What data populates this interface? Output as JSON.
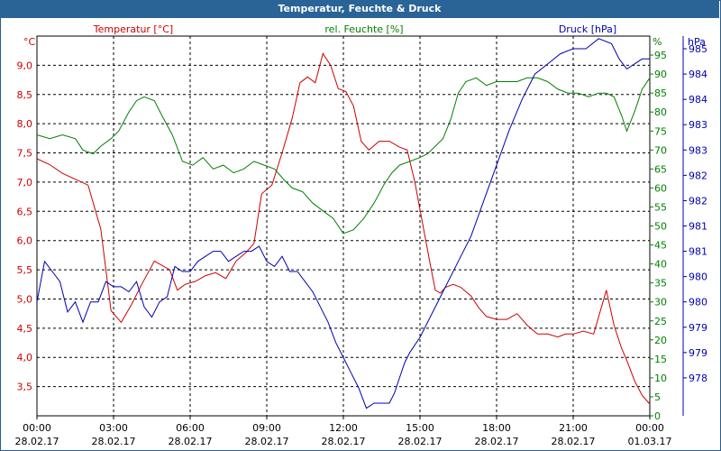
{
  "title": "Temperatur, Feuchte & Druck",
  "chart_data": {
    "type": "line",
    "title": "Temperatur, Feuchte & Druck",
    "colors": {
      "temperature": "#cc0000",
      "humidity": "#008000",
      "pressure": "#0000b0",
      "title_bg": "#2a6496"
    },
    "grid": true,
    "legend_placement": "top",
    "x_ticks": [
      {
        "time": "00:00",
        "date": "28.02.17"
      },
      {
        "time": "03:00",
        "date": "28.02.17"
      },
      {
        "time": "06:00",
        "date": "28.02.17"
      },
      {
        "time": "09:00",
        "date": "28.02.17"
      },
      {
        "time": "12:00",
        "date": "28.02.17"
      },
      {
        "time": "15:00",
        "date": "28.02.17"
      },
      {
        "time": "18:00",
        "date": "28.02.17"
      },
      {
        "time": "21:00",
        "date": "28.02.17"
      },
      {
        "time": "00:00",
        "date": "01.03.17"
      }
    ],
    "xlim": [
      "28.02.17 00:00",
      "01.03.17 00:00"
    ],
    "axes": {
      "temperature": {
        "label": "Temperatur [°C]",
        "unit": "°C",
        "ylim": [
          3.0,
          9.5
        ],
        "ticks": [
          "9,0",
          "8,5",
          "8,0",
          "7,5",
          "7,0",
          "6,5",
          "6,0",
          "5,5",
          "5,0",
          "4,5",
          "4,0",
          "3,5"
        ]
      },
      "humidity": {
        "label": "rel. Feuchte [%]",
        "unit": "%",
        "ylim": [
          0,
          100
        ],
        "ticks": [
          "95",
          "90",
          "85",
          "80",
          "75",
          "70",
          "65",
          "60",
          "55",
          "50",
          "45",
          "40",
          "35",
          "30",
          "25",
          "20",
          "15",
          "10",
          "5",
          "0"
        ]
      },
      "pressure": {
        "label": "Druck [hPa]",
        "unit": "hPa",
        "ylim": [
          977.75,
          985.25
        ],
        "ticks": [
          "985",
          "984",
          "984",
          "983",
          "983",
          "982",
          "982",
          "981",
          "981",
          "980",
          "980",
          "979",
          "979",
          "978"
        ]
      }
    },
    "series": [
      {
        "name": "Temperatur [°C]",
        "key": "temperature",
        "x": [
          0,
          0.5,
          1.0,
          1.5,
          2.0,
          2.5,
          2.9,
          3.3,
          3.7,
          4.1,
          4.6,
          5.2,
          5.5,
          5.8,
          6.2,
          6.6,
          7.0,
          7.4,
          7.8,
          8.2,
          8.5,
          8.8,
          9.2,
          9.6,
          10.0,
          10.3,
          10.6,
          10.9,
          11.2,
          11.5,
          11.8,
          12.1,
          12.4,
          12.7,
          13.0,
          13.4,
          13.8,
          14.2,
          14.5,
          14.8,
          15.1,
          15.4,
          15.6,
          15.8,
          16.0,
          16.3,
          16.6,
          17.0,
          17.3,
          17.6,
          18.0,
          18.4,
          18.8,
          19.2,
          19.6,
          20.0,
          20.4,
          20.7,
          21.0,
          21.4,
          21.8,
          22.3,
          22.6,
          22.9,
          23.1,
          23.4,
          23.7,
          24.0
        ],
        "values": [
          7.4,
          7.3,
          7.15,
          7.05,
          6.95,
          6.2,
          4.8,
          4.6,
          4.9,
          5.25,
          5.65,
          5.5,
          5.15,
          5.25,
          5.3,
          5.4,
          5.45,
          5.35,
          5.65,
          5.8,
          5.95,
          6.8,
          6.95,
          7.5,
          8.1,
          8.7,
          8.8,
          8.7,
          9.2,
          9.0,
          8.6,
          8.55,
          8.3,
          7.7,
          7.55,
          7.7,
          7.7,
          7.6,
          7.55,
          7.0,
          6.3,
          5.6,
          5.15,
          5.1,
          5.2,
          5.25,
          5.2,
          5.05,
          4.85,
          4.7,
          4.65,
          4.65,
          4.75,
          4.55,
          4.4,
          4.4,
          4.35,
          4.4,
          4.4,
          4.45,
          4.4,
          5.15,
          4.55,
          4.15,
          3.95,
          3.6,
          3.35,
          3.2
        ]
      },
      {
        "name": "rel. Feuchte [%]",
        "key": "humidity",
        "x": [
          0,
          0.5,
          1.0,
          1.5,
          1.8,
          2.2,
          2.5,
          2.9,
          3.2,
          3.6,
          3.9,
          4.2,
          4.6,
          4.9,
          5.3,
          5.7,
          6.1,
          6.5,
          6.9,
          7.3,
          7.7,
          8.1,
          8.5,
          8.9,
          9.3,
          9.7,
          10.0,
          10.4,
          10.8,
          11.2,
          11.6,
          12.0,
          12.4,
          12.8,
          13.2,
          13.6,
          13.9,
          14.2,
          14.6,
          15.0,
          15.3,
          15.6,
          15.9,
          16.2,
          16.5,
          16.8,
          17.2,
          17.6,
          18.0,
          18.4,
          18.8,
          19.2,
          19.6,
          20.0,
          20.4,
          20.8,
          21.2,
          21.6,
          22.0,
          22.3,
          22.6,
          22.9,
          23.1,
          23.4,
          23.7,
          24.0
        ],
        "values": [
          74,
          73,
          74,
          73,
          70,
          69,
          71,
          73,
          75,
          80,
          83,
          84,
          83,
          79,
          74,
          67,
          66,
          68,
          65,
          66,
          64,
          65,
          67,
          66,
          65,
          62,
          60,
          59,
          56,
          54,
          52,
          48,
          49,
          52,
          56,
          61,
          64,
          66,
          67,
          68,
          69,
          71,
          73,
          78,
          85,
          88,
          89,
          87,
          88,
          88,
          88,
          89,
          89,
          88,
          86,
          85,
          85,
          84,
          85,
          85,
          84,
          79,
          75,
          80,
          86,
          89
        ]
      },
      {
        "name": "Druck [hPa]",
        "key": "pressure",
        "x": [
          0,
          0.3,
          0.6,
          0.9,
          1.2,
          1.5,
          1.8,
          2.1,
          2.4,
          2.7,
          3.0,
          3.3,
          3.6,
          3.9,
          4.2,
          4.5,
          4.8,
          5.1,
          5.4,
          5.7,
          6.0,
          6.3,
          6.6,
          6.9,
          7.2,
          7.5,
          7.8,
          8.1,
          8.4,
          8.7,
          9.0,
          9.3,
          9.6,
          9.9,
          10.2,
          10.5,
          10.8,
          11.1,
          11.4,
          11.7,
          12.0,
          12.3,
          12.6,
          12.9,
          13.2,
          13.5,
          13.8,
          14.0,
          14.2,
          14.4,
          14.6,
          15.0,
          15.5,
          16.0,
          16.5,
          17.0,
          17.5,
          18.0,
          18.5,
          19.0,
          19.5,
          20.0,
          20.5,
          21.0,
          21.5,
          22.0,
          22.5,
          22.8,
          23.1,
          23.4,
          23.7,
          24.0
        ],
        "values": [
          980.0,
          980.8,
          980.6,
          980.4,
          979.8,
          980.0,
          979.6,
          980.0,
          980.0,
          980.4,
          980.3,
          980.3,
          980.2,
          980.4,
          979.9,
          979.7,
          980.0,
          980.1,
          980.7,
          980.6,
          980.6,
          980.8,
          980.9,
          981.0,
          981.0,
          980.8,
          980.9,
          981.0,
          981.0,
          981.1,
          980.8,
          980.7,
          980.9,
          980.6,
          980.6,
          980.4,
          980.2,
          979.9,
          979.6,
          979.2,
          978.9,
          978.6,
          978.3,
          977.9,
          978.0,
          978.0,
          978.0,
          978.2,
          978.5,
          978.8,
          979.0,
          979.3,
          979.8,
          980.3,
          980.8,
          981.3,
          982.0,
          982.7,
          983.4,
          984.0,
          984.5,
          984.7,
          984.9,
          985.0,
          985.0,
          985.2,
          985.1,
          984.8,
          984.6,
          984.7,
          984.8,
          984.8
        ]
      }
    ]
  }
}
